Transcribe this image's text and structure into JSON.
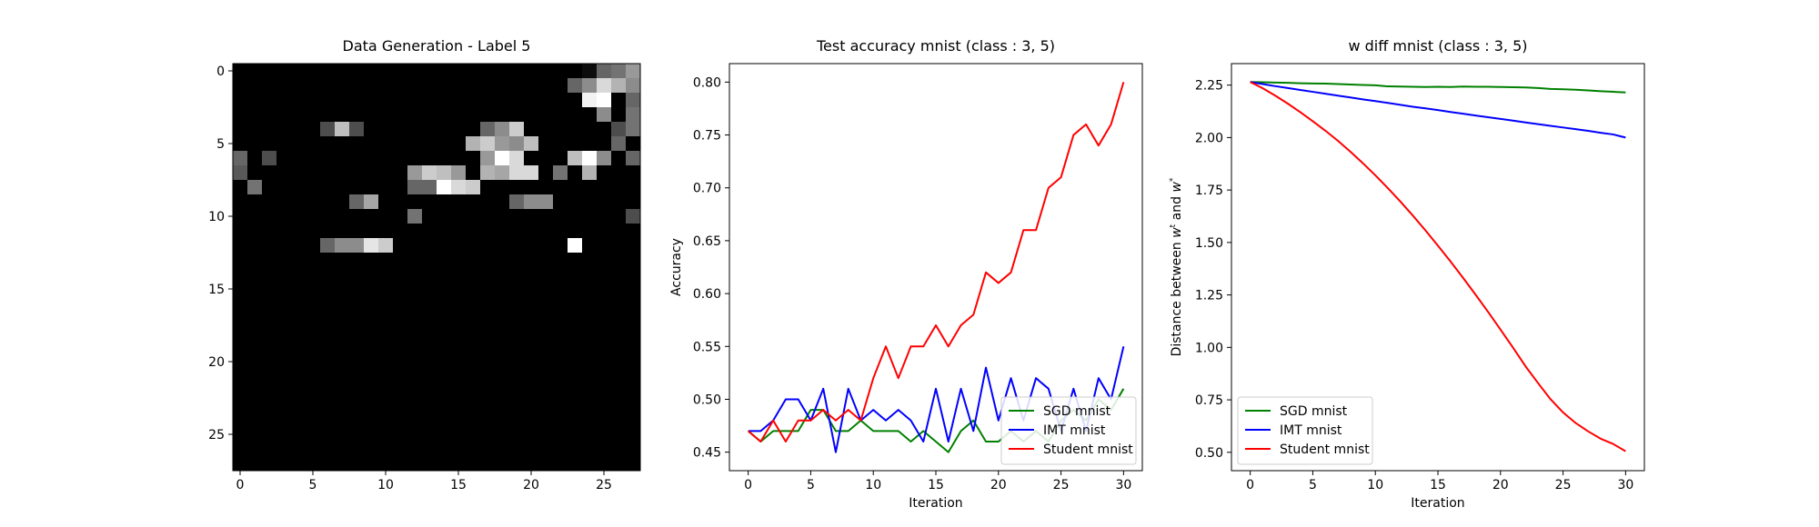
{
  "chart_data": [
    {
      "type": "heatmap",
      "title": "Data Generation - Label 5",
      "xlabel": "",
      "ylabel": "",
      "xticks": [
        0,
        5,
        10,
        15,
        20,
        25
      ],
      "yticks": [
        0,
        5,
        10,
        15,
        20,
        25
      ],
      "xlim": [
        -0.5,
        27.5
      ],
      "ylim": [
        27.5,
        -0.5
      ],
      "grid_size": [
        28,
        28
      ],
      "pixels": [
        [
          0,
          0,
          0,
          0,
          0,
          0,
          0,
          0,
          0,
          0,
          0,
          0,
          0,
          0,
          0,
          0,
          0,
          0,
          0,
          0,
          0,
          0,
          0,
          0,
          5,
          40,
          45,
          60
        ],
        [
          0,
          0,
          0,
          0,
          0,
          0,
          0,
          0,
          0,
          0,
          0,
          0,
          0,
          0,
          0,
          0,
          0,
          0,
          0,
          0,
          0,
          0,
          0,
          40,
          55,
          85,
          70,
          55
        ],
        [
          0,
          0,
          0,
          0,
          0,
          0,
          0,
          0,
          0,
          0,
          0,
          0,
          0,
          0,
          0,
          0,
          0,
          0,
          0,
          0,
          0,
          0,
          0,
          0,
          95,
          100,
          0,
          40
        ],
        [
          0,
          0,
          0,
          0,
          0,
          0,
          0,
          0,
          0,
          0,
          0,
          0,
          0,
          0,
          0,
          0,
          0,
          0,
          0,
          0,
          0,
          0,
          0,
          0,
          0,
          55,
          0,
          45
        ],
        [
          0,
          0,
          0,
          0,
          0,
          0,
          30,
          75,
          30,
          0,
          0,
          0,
          0,
          0,
          0,
          0,
          0,
          40,
          55,
          80,
          0,
          0,
          0,
          0,
          0,
          0,
          30,
          45
        ],
        [
          0,
          0,
          0,
          0,
          0,
          0,
          0,
          0,
          0,
          0,
          0,
          0,
          0,
          0,
          0,
          0,
          70,
          80,
          60,
          55,
          75,
          0,
          0,
          0,
          0,
          0,
          40,
          0
        ],
        [
          40,
          0,
          30,
          0,
          0,
          0,
          0,
          0,
          0,
          0,
          0,
          0,
          0,
          0,
          0,
          0,
          0,
          60,
          100,
          85,
          0,
          0,
          0,
          75,
          100,
          55,
          0,
          40
        ],
        [
          35,
          0,
          0,
          0,
          0,
          0,
          0,
          0,
          0,
          0,
          0,
          0,
          60,
          80,
          75,
          60,
          0,
          70,
          65,
          85,
          85,
          0,
          45,
          0,
          70,
          0,
          0,
          0
        ],
        [
          0,
          45,
          0,
          0,
          0,
          0,
          0,
          0,
          0,
          0,
          0,
          0,
          40,
          40,
          100,
          85,
          80,
          0,
          0,
          0,
          0,
          0,
          0,
          0,
          0,
          0,
          0,
          0
        ],
        [
          0,
          0,
          0,
          0,
          0,
          0,
          0,
          0,
          40,
          65,
          0,
          0,
          0,
          0,
          0,
          0,
          0,
          0,
          0,
          40,
          55,
          55,
          0,
          0,
          0,
          0,
          0,
          0
        ],
        [
          0,
          0,
          0,
          0,
          0,
          0,
          0,
          0,
          0,
          0,
          0,
          0,
          45,
          0,
          0,
          0,
          0,
          0,
          0,
          0,
          0,
          0,
          0,
          0,
          0,
          0,
          0,
          30
        ],
        [
          0,
          0,
          0,
          0,
          0,
          0,
          0,
          0,
          0,
          0,
          0,
          0,
          0,
          0,
          0,
          0,
          0,
          0,
          0,
          0,
          0,
          0,
          0,
          0,
          0,
          0,
          0,
          0
        ],
        [
          0,
          0,
          0,
          0,
          0,
          0,
          40,
          55,
          55,
          90,
          80,
          0,
          0,
          0,
          0,
          0,
          0,
          0,
          0,
          0,
          0,
          0,
          0,
          100,
          0,
          0,
          0,
          0
        ],
        [
          0,
          0,
          0,
          0,
          0,
          0,
          0,
          0,
          0,
          0,
          0,
          0,
          0,
          0,
          0,
          0,
          0,
          0,
          0,
          0,
          0,
          0,
          0,
          0,
          0,
          0,
          0,
          0
        ],
        [
          0,
          0,
          0,
          0,
          0,
          0,
          0,
          0,
          0,
          0,
          0,
          0,
          0,
          0,
          0,
          0,
          0,
          0,
          0,
          0,
          0,
          0,
          0,
          0,
          0,
          0,
          0,
          0
        ],
        [
          0,
          0,
          0,
          0,
          0,
          0,
          0,
          0,
          0,
          0,
          0,
          0,
          0,
          0,
          0,
          0,
          0,
          0,
          0,
          0,
          0,
          0,
          0,
          0,
          0,
          0,
          0,
          0
        ],
        [
          0,
          0,
          0,
          0,
          0,
          0,
          0,
          0,
          0,
          0,
          0,
          0,
          0,
          0,
          0,
          0,
          0,
          0,
          0,
          0,
          0,
          0,
          0,
          0,
          0,
          0,
          0,
          0
        ],
        [
          0,
          0,
          0,
          0,
          0,
          0,
          0,
          0,
          0,
          0,
          0,
          0,
          0,
          0,
          0,
          0,
          0,
          0,
          0,
          0,
          0,
          0,
          0,
          0,
          0,
          0,
          0,
          0
        ],
        [
          0,
          0,
          0,
          0,
          0,
          0,
          0,
          0,
          0,
          0,
          0,
          0,
          0,
          0,
          0,
          0,
          0,
          0,
          0,
          0,
          0,
          0,
          0,
          0,
          0,
          0,
          0,
          0
        ],
        [
          0,
          0,
          0,
          0,
          0,
          0,
          0,
          0,
          0,
          0,
          0,
          0,
          0,
          0,
          0,
          0,
          0,
          0,
          0,
          0,
          0,
          0,
          0,
          0,
          0,
          0,
          0,
          0
        ],
        [
          0,
          0,
          0,
          0,
          0,
          0,
          0,
          0,
          0,
          0,
          0,
          0,
          0,
          0,
          0,
          0,
          0,
          0,
          0,
          0,
          0,
          0,
          0,
          0,
          0,
          0,
          0,
          0
        ],
        [
          0,
          0,
          0,
          0,
          0,
          0,
          0,
          0,
          0,
          0,
          0,
          0,
          0,
          0,
          0,
          0,
          0,
          0,
          0,
          0,
          0,
          0,
          0,
          0,
          0,
          0,
          0,
          0
        ],
        [
          0,
          0,
          0,
          0,
          0,
          0,
          0,
          0,
          0,
          0,
          0,
          0,
          0,
          0,
          0,
          0,
          0,
          0,
          0,
          0,
          0,
          0,
          0,
          0,
          0,
          0,
          0,
          0
        ],
        [
          0,
          0,
          0,
          0,
          0,
          0,
          0,
          0,
          0,
          0,
          0,
          0,
          0,
          0,
          0,
          0,
          0,
          0,
          0,
          0,
          0,
          0,
          0,
          0,
          0,
          0,
          0,
          0
        ],
        [
          0,
          0,
          0,
          0,
          0,
          0,
          0,
          0,
          0,
          0,
          0,
          0,
          0,
          0,
          0,
          0,
          0,
          0,
          0,
          0,
          0,
          0,
          0,
          0,
          0,
          0,
          0,
          0
        ],
        [
          0,
          0,
          0,
          0,
          0,
          0,
          0,
          0,
          0,
          0,
          0,
          0,
          0,
          0,
          0,
          0,
          0,
          0,
          0,
          0,
          0,
          0,
          0,
          0,
          0,
          0,
          0,
          0
        ],
        [
          0,
          0,
          0,
          0,
          0,
          0,
          0,
          0,
          0,
          0,
          0,
          0,
          0,
          0,
          0,
          0,
          0,
          0,
          0,
          0,
          0,
          0,
          0,
          0,
          0,
          0,
          0,
          0
        ],
        [
          0,
          0,
          0,
          0,
          0,
          0,
          0,
          0,
          0,
          0,
          0,
          0,
          0,
          0,
          0,
          0,
          0,
          0,
          0,
          0,
          0,
          0,
          0,
          0,
          0,
          0,
          0,
          0
        ]
      ]
    },
    {
      "type": "line",
      "title": "Test accuracy mnist (class : 3, 5)",
      "xlabel": "Iteration",
      "ylabel": "Accuracy",
      "xlim": [
        -1.5,
        31.5
      ],
      "ylim": [
        0.4325,
        0.8175
      ],
      "xticks": [
        0,
        5,
        10,
        15,
        20,
        25,
        30
      ],
      "yticks": [
        "0.45",
        "0.50",
        "0.55",
        "0.60",
        "0.65",
        "0.70",
        "0.75",
        "0.80"
      ],
      "legend_position": "bottom-right",
      "x": [
        0,
        1,
        2,
        3,
        4,
        5,
        6,
        7,
        8,
        9,
        10,
        11,
        12,
        13,
        14,
        15,
        16,
        17,
        18,
        19,
        20,
        21,
        22,
        23,
        24,
        25,
        26,
        27,
        28,
        29,
        30
      ],
      "series": [
        {
          "name": "SGD mnist",
          "color": "#008000",
          "values": [
            0.47,
            0.46,
            0.47,
            0.47,
            0.47,
            0.49,
            0.49,
            0.47,
            0.47,
            0.48,
            0.47,
            0.47,
            0.47,
            0.46,
            0.47,
            0.46,
            0.45,
            0.47,
            0.48,
            0.46,
            0.46,
            0.47,
            0.46,
            0.47,
            0.46,
            0.48,
            0.49,
            0.48,
            0.5,
            0.49,
            0.51
          ]
        },
        {
          "name": "IMT mnist",
          "color": "#0000ff",
          "values": [
            0.47,
            0.47,
            0.48,
            0.5,
            0.5,
            0.48,
            0.51,
            0.45,
            0.51,
            0.48,
            0.49,
            0.48,
            0.49,
            0.48,
            0.46,
            0.51,
            0.46,
            0.51,
            0.47,
            0.53,
            0.48,
            0.52,
            0.48,
            0.52,
            0.51,
            0.47,
            0.51,
            0.47,
            0.52,
            0.5,
            0.55
          ]
        },
        {
          "name": "Student mnist",
          "color": "#ff0000",
          "values": [
            0.47,
            0.46,
            0.48,
            0.46,
            0.48,
            0.48,
            0.49,
            0.48,
            0.49,
            0.48,
            0.52,
            0.55,
            0.52,
            0.55,
            0.55,
            0.57,
            0.55,
            0.57,
            0.58,
            0.62,
            0.61,
            0.62,
            0.66,
            0.66,
            0.7,
            0.71,
            0.75,
            0.76,
            0.74,
            0.76,
            0.8
          ]
        }
      ]
    },
    {
      "type": "line",
      "title": "w diff mnist (class : 3, 5)",
      "xlabel": "Iteration",
      "ylabel": "Distance between w^t and w^*",
      "ylabel_parts": [
        "Distance between ",
        "w",
        "t",
        " and ",
        "w",
        "*"
      ],
      "xlim": [
        -1.5,
        31.5
      ],
      "ylim": [
        0.4125,
        2.3525
      ],
      "xticks": [
        0,
        5,
        10,
        15,
        20,
        25,
        30
      ],
      "yticks": [
        "0.50",
        "0.75",
        "1.00",
        "1.25",
        "1.50",
        "1.75",
        "2.00",
        "2.25"
      ],
      "legend_position": "bottom-left",
      "x": [
        0,
        1,
        2,
        3,
        4,
        5,
        6,
        7,
        8,
        9,
        10,
        11,
        12,
        13,
        14,
        15,
        16,
        17,
        18,
        19,
        20,
        21,
        22,
        23,
        24,
        25,
        26,
        27,
        28,
        29,
        30
      ],
      "series": [
        {
          "name": "SGD mnist",
          "color": "#008000",
          "values": [
            2.265,
            2.264,
            2.262,
            2.261,
            2.259,
            2.258,
            2.257,
            2.255,
            2.253,
            2.251,
            2.249,
            2.244,
            2.243,
            2.242,
            2.241,
            2.242,
            2.241,
            2.243,
            2.242,
            2.242,
            2.241,
            2.24,
            2.239,
            2.236,
            2.232,
            2.23,
            2.228,
            2.225,
            2.221,
            2.218,
            2.215
          ]
        },
        {
          "name": "IMT mnist",
          "color": "#0000ff",
          "values": [
            2.265,
            2.255,
            2.245,
            2.236,
            2.227,
            2.218,
            2.209,
            2.2,
            2.191,
            2.182,
            2.174,
            2.165,
            2.156,
            2.147,
            2.139,
            2.131,
            2.122,
            2.114,
            2.105,
            2.097,
            2.089,
            2.081,
            2.072,
            2.064,
            2.056,
            2.048,
            2.04,
            2.032,
            2.023,
            2.015,
            2.0
          ]
        },
        {
          "name": "Student mnist",
          "color": "#ff0000",
          "values": [
            2.265,
            2.235,
            2.2,
            2.162,
            2.121,
            2.078,
            2.033,
            1.985,
            1.933,
            1.878,
            1.82,
            1.759,
            1.695,
            1.628,
            1.558,
            1.485,
            1.41,
            1.332,
            1.252,
            1.17,
            1.085,
            0.999,
            0.91,
            0.83,
            0.753,
            0.69,
            0.64,
            0.6,
            0.565,
            0.54,
            0.505
          ]
        }
      ]
    }
  ]
}
